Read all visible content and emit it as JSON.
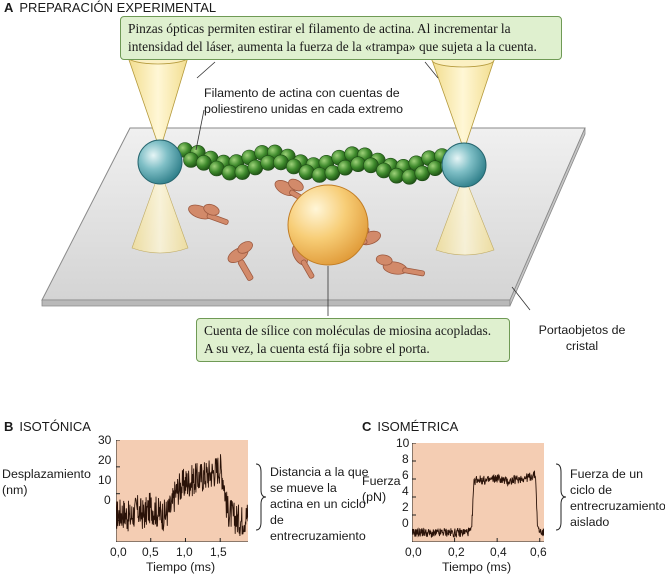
{
  "panel_a": {
    "letter": "A",
    "title": "PREPARACIÓN EXPERIMENTAL",
    "callout_top": "Pinzas ópticas permiten estirar el filamento de actina. Al incrementar la intensidad del láser, aumenta la fuerza de la «trampa» que sujeta a la cuenta.",
    "label_filament": "Filamento de actina con cuentas de poliestireno unidas en cada extremo",
    "callout_bottom": "Cuenta de sílice con moléculas de miosina acopladas. A su vez, la cuenta está fija sobre el porta.",
    "label_slide": "Portaobjetos de cristal"
  },
  "panel_b": {
    "letter": "B",
    "title": "ISOTÓNICA",
    "ylabel": "Desplazamiento (nm)",
    "xlabel": "Tiempo (ms)",
    "brace_text": "Distancia a la que se mueve la actina en un ciclo de entrecruzamiento",
    "y_ticks": [
      "30",
      "20",
      "10",
      "0"
    ],
    "x_ticks": [
      "0,0",
      "0,5",
      "1,0",
      "1,5"
    ]
  },
  "panel_c": {
    "letter": "C",
    "title": "ISOMÉTRICA",
    "ylabel": "Fuerza (pN)",
    "xlabel": "Tiempo (ms)",
    "brace_text": "Fuerza de un ciclo de entrecruzamiento aislado",
    "y_ticks": [
      "10",
      "8",
      "6",
      "4",
      "2",
      "0"
    ],
    "x_ticks": [
      "0,0",
      "0,2",
      "0,4",
      "0,6"
    ]
  },
  "chart_data": [
    {
      "type": "line",
      "title": "ISOTÓNICA",
      "xlabel": "Tiempo (ms)",
      "ylabel": "Desplazamiento (nm)",
      "xlim": [
        0,
        1.9
      ],
      "ylim": [
        -8,
        30
      ],
      "x": [
        0.0,
        0.1,
        0.2,
        0.3,
        0.4,
        0.5,
        0.6,
        0.7,
        0.8,
        0.85,
        0.9,
        1.0,
        1.1,
        1.2,
        1.3,
        1.4,
        1.5,
        1.55,
        1.6,
        1.7,
        1.8,
        1.9
      ],
      "values": [
        2,
        3,
        1,
        4,
        2,
        5,
        3,
        2,
        5,
        10,
        12,
        14,
        15,
        16,
        17,
        18,
        20,
        15,
        4,
        1,
        0,
        2
      ]
    },
    {
      "type": "line",
      "title": "ISOMÉTRICA",
      "xlabel": "Tiempo (ms)",
      "ylabel": "Fuerza (pN)",
      "xlim": [
        0,
        0.62
      ],
      "ylim": [
        -1,
        10
      ],
      "x": [
        0.0,
        0.05,
        0.1,
        0.15,
        0.2,
        0.25,
        0.28,
        0.29,
        0.3,
        0.35,
        0.4,
        0.45,
        0.5,
        0.55,
        0.58,
        0.59,
        0.6,
        0.62
      ],
      "values": [
        0,
        0.1,
        -0.1,
        0.1,
        0,
        0.1,
        0.2,
        5.5,
        6,
        5.8,
        6.1,
        5.7,
        6,
        6.2,
        6.5,
        0.5,
        0.2,
        0
      ]
    }
  ]
}
